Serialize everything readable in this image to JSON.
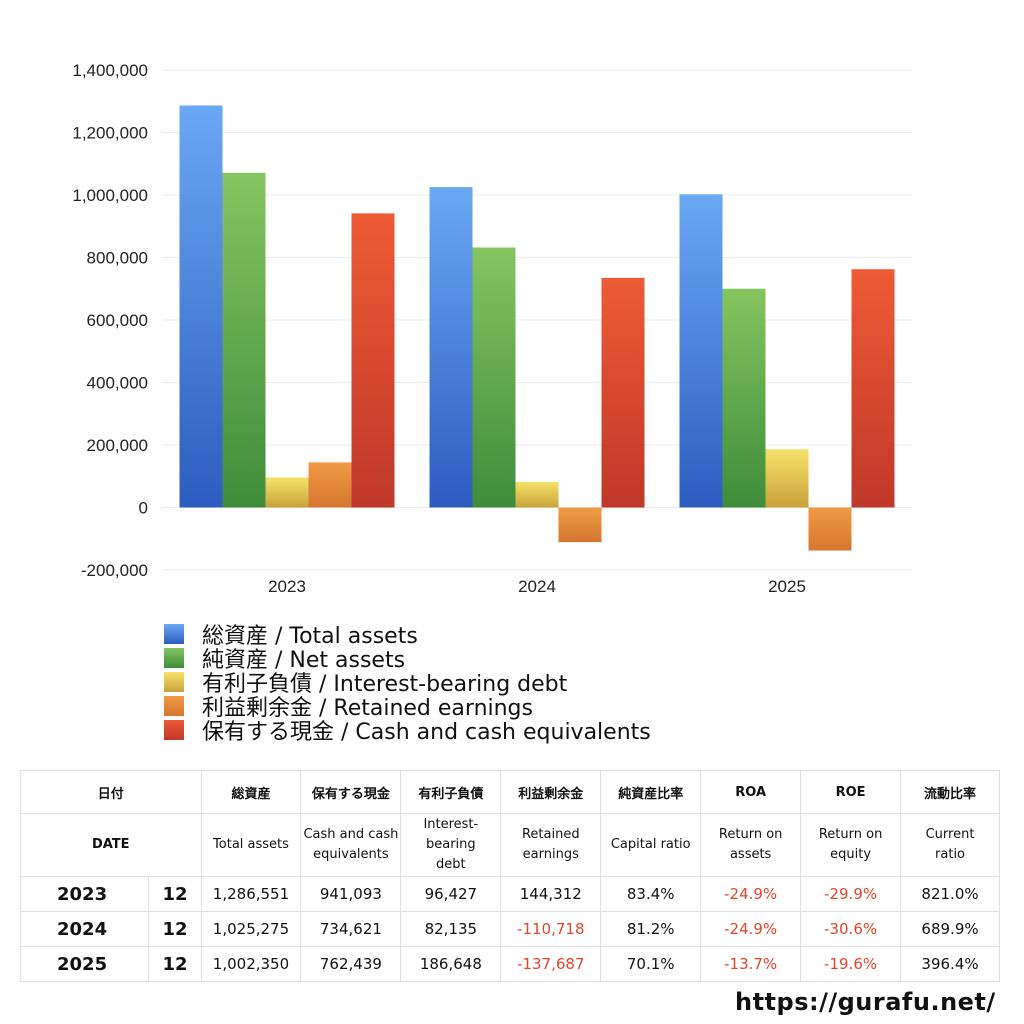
{
  "chart_data": {
    "type": "bar",
    "categories": [
      "2023",
      "2024",
      "2025"
    ],
    "ylim": [
      -200000,
      1400000
    ],
    "yticks": [
      1400000,
      1200000,
      1000000,
      800000,
      600000,
      400000,
      200000,
      0,
      -200000
    ],
    "ytick_labels": [
      "1,400,000",
      "1,200,000",
      "1,000,000",
      "800,000",
      "600,000",
      "400,000",
      "200,000",
      "0",
      "-200,000"
    ],
    "grid": true,
    "legend_position": "bottom",
    "series": [
      {
        "name": "総資産 / Total assets",
        "color_top": "#6aa8f4",
        "color_bottom": "#2c5cc0",
        "values": [
          1286551,
          1025275,
          1002350
        ]
      },
      {
        "name": "純資産 / Net assets",
        "color_top": "#86c560",
        "color_bottom": "#3d8d3a",
        "values": [
          1071000,
          832000,
          700000
        ]
      },
      {
        "name": "有利子負債 / Interest-bearing debt",
        "color_top": "#f6e36a",
        "color_bottom": "#c9a23a",
        "values": [
          96427,
          82135,
          186648
        ]
      },
      {
        "name": "利益剰余金 / Retained earnings",
        "color_top": "#f19a45",
        "color_bottom": "#d5772f",
        "values": [
          144312,
          -110718,
          -137687
        ]
      },
      {
        "name": "保有する現金 /  Cash and cash equivalents",
        "color_top": "#ee5a34",
        "color_bottom": "#c0382a",
        "values": [
          941093,
          734621,
          762439
        ]
      }
    ]
  },
  "table": {
    "header_ja": {
      "date": "日付",
      "total_assets": "総資産",
      "cash": "保有する現金",
      "debt": "有利子負債",
      "retained": "利益剰余金",
      "capital_ratio": "純資産比率",
      "roa": "ROA",
      "roe": "ROE",
      "current_ratio": "流動比率"
    },
    "header_en": {
      "date": "DATE",
      "total_assets": "Total assets",
      "cash_1": "Cash and cash",
      "cash_2": "equivalents",
      "debt_1": "Interest-",
      "debt_2": "bearing",
      "debt_3": "debt",
      "retained_1": "Retained",
      "retained_2": "earnings",
      "capital_ratio": "Capital ratio",
      "roa_1": "Return on",
      "roa_2": "assets",
      "roe_1": "Return on",
      "roe_2": "equity",
      "current_1": "Current",
      "current_2": "ratio"
    },
    "rows": [
      {
        "year": "2023",
        "month": "12",
        "total_assets": "1,286,551",
        "cash": "941,093",
        "debt": "96,427",
        "retained": "144,312",
        "capital_ratio": "83.4%",
        "roa": "-24.9%",
        "roe": "-29.9%",
        "current_ratio": "821.0%"
      },
      {
        "year": "2024",
        "month": "12",
        "total_assets": "1,025,275",
        "cash": "734,621",
        "debt": "82,135",
        "retained": "-110,718",
        "capital_ratio": "81.2%",
        "roa": "-24.9%",
        "roe": "-30.6%",
        "current_ratio": "689.9%"
      },
      {
        "year": "2025",
        "month": "12",
        "total_assets": "1,002,350",
        "cash": "762,439",
        "debt": "186,648",
        "retained": "-137,687",
        "capital_ratio": "70.1%",
        "roa": "-13.7%",
        "roe": "-19.6%",
        "current_ratio": "396.4%"
      }
    ]
  },
  "footer": {
    "site": "https://gurafu.net/"
  },
  "colors": {
    "negative": "#e0452b",
    "grid": "#ececec"
  }
}
